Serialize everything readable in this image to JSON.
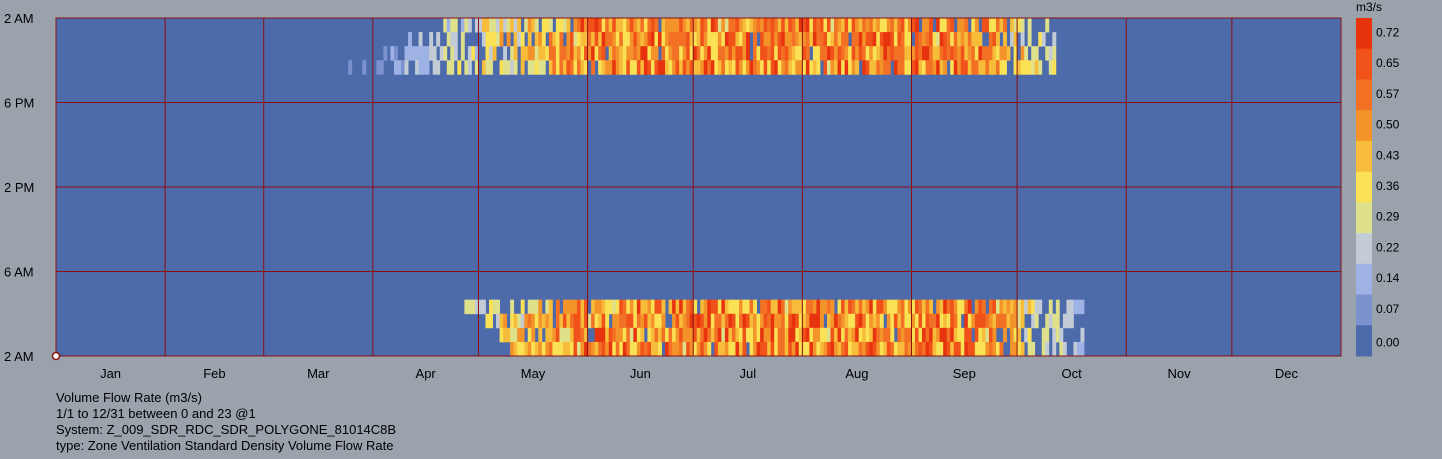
{
  "chart_data": {
    "type": "heatmap",
    "title": "",
    "x_axis": {
      "labels": [
        "Jan",
        "Feb",
        "Mar",
        "Apr",
        "May",
        "Jun",
        "Jul",
        "Aug",
        "Sep",
        "Oct",
        "Nov",
        "Dec"
      ],
      "range_days": [
        1,
        365
      ]
    },
    "y_axis": {
      "tick_labels": [
        "2 AM",
        "6 PM",
        "2 PM",
        "6 AM",
        "2 AM"
      ],
      "range_hours": [
        0,
        23
      ]
    },
    "colorbar": {
      "unit": "m3/s",
      "ticks": [
        "0.72",
        "0.65",
        "0.57",
        "0.50",
        "0.43",
        "0.36",
        "0.29",
        "0.22",
        "0.14",
        "0.07",
        "0.00"
      ],
      "range": [
        0,
        0.79
      ],
      "colors": [
        "#e8330f",
        "#f0521a",
        "#f27124",
        "#f3932a",
        "#f7bd3a",
        "#fbe255",
        "#dfe08a",
        "#c3cbd6",
        "#9fb2e6",
        "#7b92cf",
        "#4d6aab"
      ]
    },
    "grid": true,
    "series": [
      {
        "name": "Volume Flow Rate (m3/s)",
        "active_periods": [
          {
            "hours": "evening (about 6 PM to 2 AM)",
            "start": "Mar 24",
            "end": "Oct 10",
            "peak": "Jun to Sep",
            "peak_value": 0.72
          },
          {
            "hours": "morning (about 2 AM to 6 AM)",
            "start": "Apr 27",
            "end": "Oct 18",
            "peak": "Jun to Sep",
            "peak_value": 0.72
          }
        ],
        "inactive_value": 0.0
      }
    ]
  },
  "info": {
    "line1": "Volume Flow Rate (m3/s)",
    "line2": "1/1 to 12/31 between 0 and 23 @1",
    "line3": "System: Z_009_SDR_RDC_SDR_POLYGONE_81014C8B",
    "line4": "type: Zone Ventilation Standard Density Volume Flow Rate"
  }
}
